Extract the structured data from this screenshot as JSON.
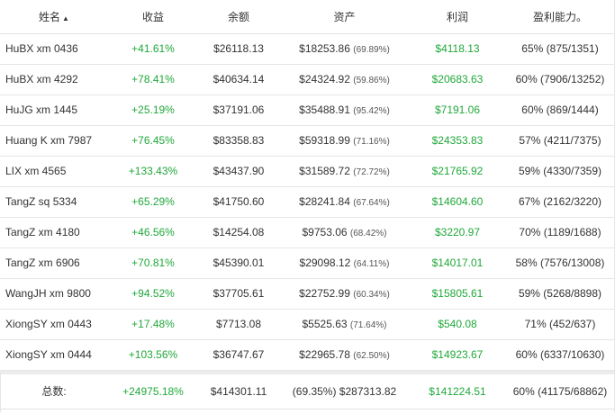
{
  "headers": {
    "name": "姓名",
    "income": "收益",
    "balance": "余额",
    "assets": "资产",
    "profit": "利润",
    "profitability": "盈利能力。"
  },
  "rows": [
    {
      "name": "HuBX xm 0436",
      "income": "+41.61%",
      "balance": "$26118.13",
      "assets": "$18253.86",
      "assets_pct": "(69.89%)",
      "profit": "$4118.13",
      "profitability": "65% (875/1351)"
    },
    {
      "name": "HuBX xm 4292",
      "income": "+78.41%",
      "balance": "$40634.14",
      "assets": "$24324.92",
      "assets_pct": "(59.86%)",
      "profit": "$20683.63",
      "profitability": "60% (7906/13252)"
    },
    {
      "name": "HuJG xm 1445",
      "income": "+25.19%",
      "balance": "$37191.06",
      "assets": "$35488.91",
      "assets_pct": "(95.42%)",
      "profit": "$7191.06",
      "profitability": "60% (869/1444)"
    },
    {
      "name": "Huang K xm 7987",
      "income": "+76.45%",
      "balance": "$83358.83",
      "assets": "$59318.99",
      "assets_pct": "(71.16%)",
      "profit": "$24353.83",
      "profitability": "57% (4211/7375)"
    },
    {
      "name": "LIX xm 4565",
      "income": "+133.43%",
      "balance": "$43437.90",
      "assets": "$31589.72",
      "assets_pct": "(72.72%)",
      "profit": "$21765.92",
      "profitability": "59% (4330/7359)"
    },
    {
      "name": "TangZ sq 5334",
      "income": "+65.29%",
      "balance": "$41750.60",
      "assets": "$28241.84",
      "assets_pct": "(67.64%)",
      "profit": "$14604.60",
      "profitability": "67% (2162/3220)"
    },
    {
      "name": "TangZ xm 4180",
      "income": "+46.56%",
      "balance": "$14254.08",
      "assets": "$9753.06",
      "assets_pct": "(68.42%)",
      "profit": "$3220.97",
      "profitability": "70% (1189/1688)"
    },
    {
      "name": "TangZ xm 6906",
      "income": "+70.81%",
      "balance": "$45390.01",
      "assets": "$29098.12",
      "assets_pct": "(64.11%)",
      "profit": "$14017.01",
      "profitability": "58% (7576/13008)"
    },
    {
      "name": "WangJH xm 9800",
      "income": "+94.52%",
      "balance": "$37705.61",
      "assets": "$22752.99",
      "assets_pct": "(60.34%)",
      "profit": "$15805.61",
      "profitability": "59% (5268/8898)"
    },
    {
      "name": "XiongSY xm 0443",
      "income": "+17.48%",
      "balance": "$7713.08",
      "assets": "$5525.63",
      "assets_pct": "(71.64%)",
      "profit": "$540.08",
      "profitability": "71% (452/637)"
    },
    {
      "name": "XiongSY xm 0444",
      "income": "+103.56%",
      "balance": "$36747.67",
      "assets": "$22965.78",
      "assets_pct": "(62.50%)",
      "profit": "$14923.67",
      "profitability": "60% (6337/10630)"
    }
  ],
  "total": {
    "label": "总数:",
    "income": "+24975.18%",
    "balance": "$414301.11",
    "assets": "(69.35%) $287313.82",
    "profit": "$141224.51",
    "profitability": "60% (41175/68862)"
  },
  "colors": {
    "positive": "#20a83a",
    "text": "#333333",
    "border": "#e6e6e6"
  },
  "sort": {
    "column": "name",
    "direction": "ascending",
    "icon": "sort-up-icon"
  }
}
